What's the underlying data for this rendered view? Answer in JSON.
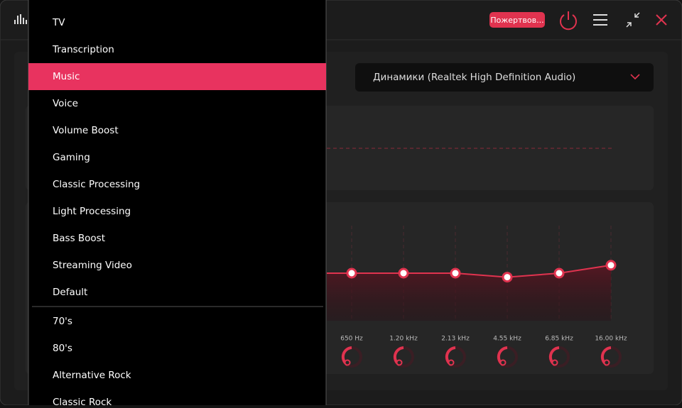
{
  "header": {
    "donate_button": "Пожертвов..."
  },
  "device_select": {
    "label": "Динамики (Realtek High Definition Audio)"
  },
  "preset_menu": {
    "groups": [
      [
        "TV",
        "Transcription",
        "Music",
        "Voice",
        "Volume Boost",
        "Gaming",
        "Classic Processing",
        "Light Processing",
        "Bass Boost",
        "Streaming Video",
        "Default"
      ],
      [
        "70's",
        "80's",
        "Alternative Rock",
        "Classic Rock"
      ]
    ],
    "selected": "Music"
  },
  "equalizer": {
    "bands": [
      {
        "label": "650 Hz",
        "gain": 0
      },
      {
        "label": "1.20 kHz",
        "gain": 0
      },
      {
        "label": "2.13 kHz",
        "gain": 0
      },
      {
        "label": "4.55 kHz",
        "gain": -1
      },
      {
        "label": "6.85 kHz",
        "gain": 0
      },
      {
        "label": "16.00 kHz",
        "gain": 2
      }
    ]
  }
}
